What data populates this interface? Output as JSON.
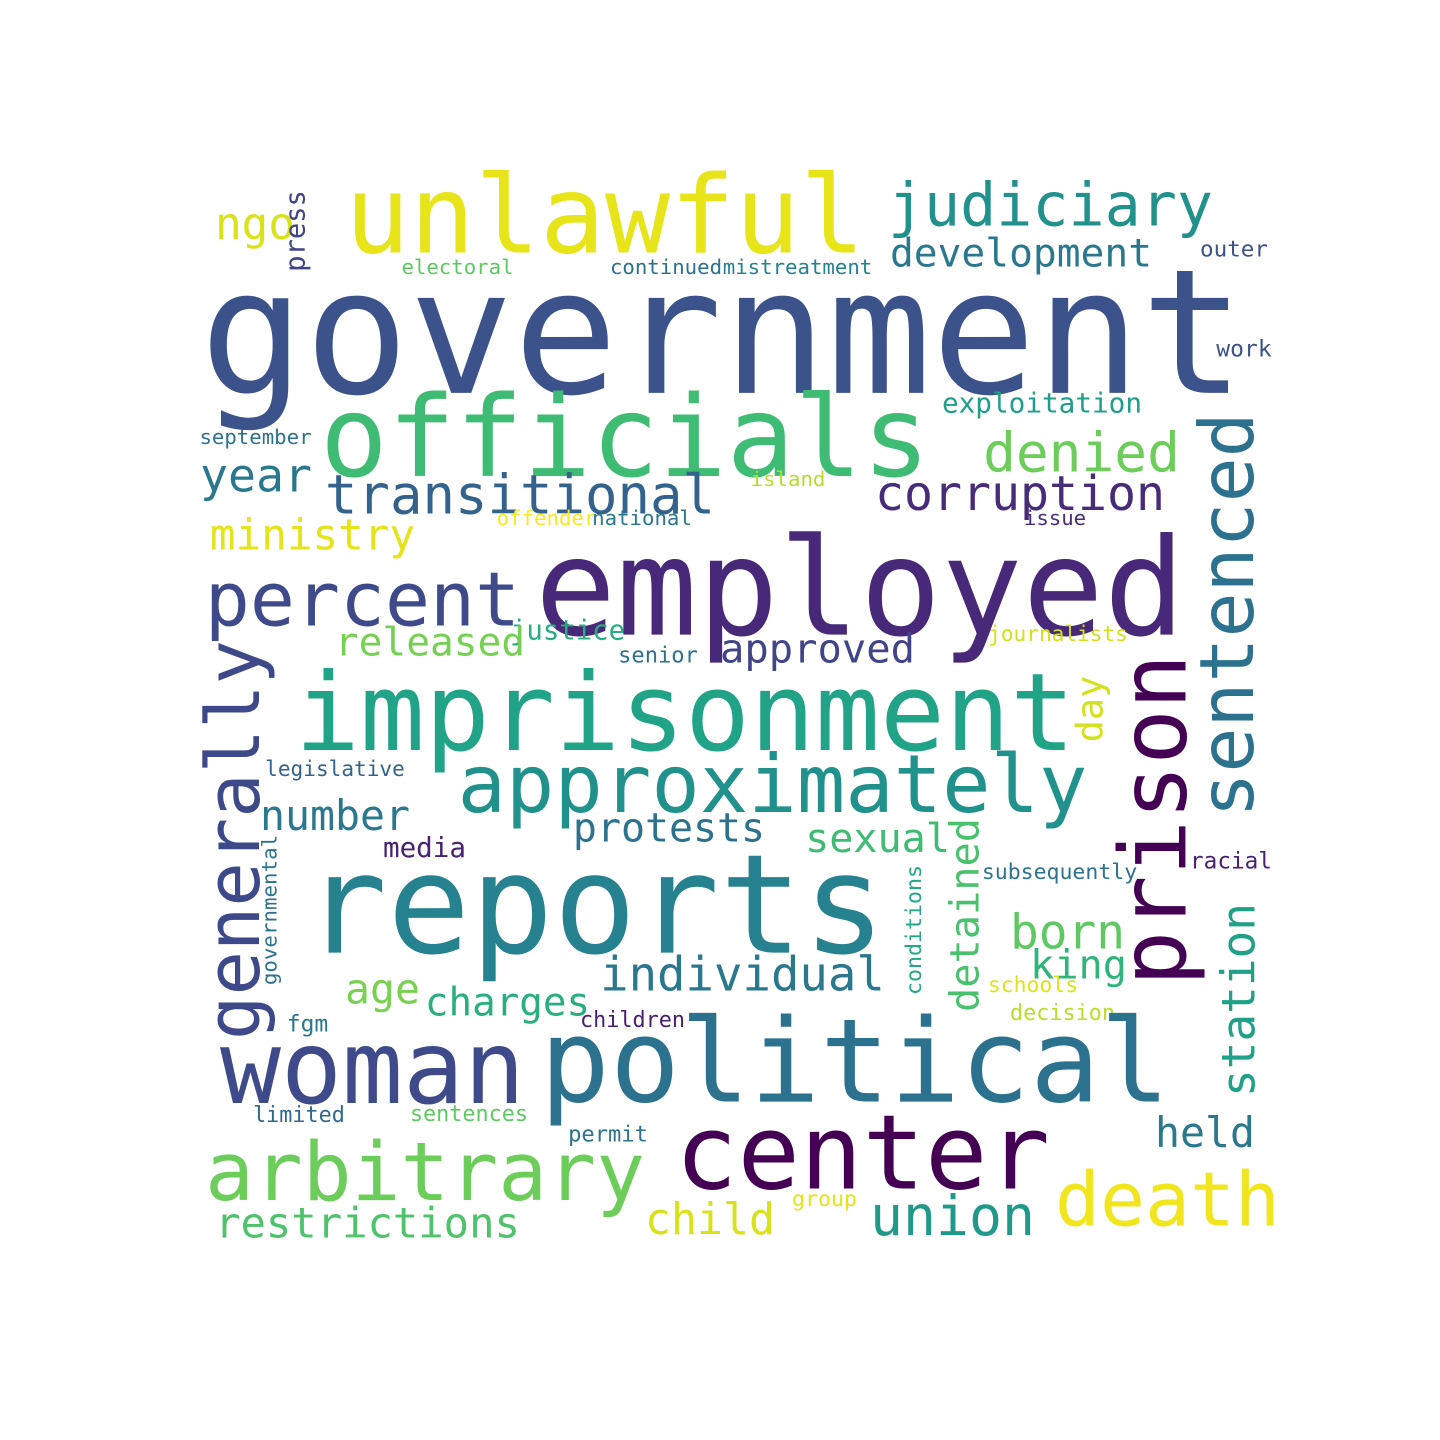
{
  "words": [
    {
      "text": "government",
      "color": "#3b528b",
      "rotated": false
    },
    {
      "text": "unlawful",
      "color": "#e7e419",
      "rotated": false
    },
    {
      "text": "judiciary",
      "color": "#21918c",
      "rotated": false
    },
    {
      "text": "development",
      "color": "#2a788e",
      "rotated": false
    },
    {
      "text": "ngo",
      "color": "#d8e219",
      "rotated": false
    },
    {
      "text": "press",
      "color": "#414487",
      "rotated": true
    },
    {
      "text": "electoral",
      "color": "#5ec962",
      "rotated": false
    },
    {
      "text": "continued",
      "color": "#2c728e",
      "rotated": false
    },
    {
      "text": "mistreatment",
      "color": "#26828e",
      "rotated": false
    },
    {
      "text": "outer",
      "color": "#3b528b",
      "rotated": false
    },
    {
      "text": "work",
      "color": "#3b528b",
      "rotated": false
    },
    {
      "text": "officials",
      "color": "#3fbc73",
      "rotated": false
    },
    {
      "text": "exploitation",
      "color": "#1f9e89",
      "rotated": false
    },
    {
      "text": "september",
      "color": "#2c728e",
      "rotated": false
    },
    {
      "text": "denied",
      "color": "#6ccd5a",
      "rotated": false
    },
    {
      "text": "year",
      "color": "#2a788e",
      "rotated": false
    },
    {
      "text": "transitional",
      "color": "#33638d",
      "rotated": false
    },
    {
      "text": "corruption",
      "color": "#472c7a",
      "rotated": false
    },
    {
      "text": "island",
      "color": "#b5de2b",
      "rotated": false
    },
    {
      "text": "offender",
      "color": "#fde725",
      "rotated": false
    },
    {
      "text": "national",
      "color": "#2a788e",
      "rotated": false
    },
    {
      "text": "issue",
      "color": "#472d7b",
      "rotated": false
    },
    {
      "text": "sentenced",
      "color": "#2c728e",
      "rotated": true
    },
    {
      "text": "ministry",
      "color": "#e5e419",
      "rotated": false
    },
    {
      "text": "employed",
      "color": "#482878",
      "rotated": false
    },
    {
      "text": "percent",
      "color": "#3e4a89",
      "rotated": false
    },
    {
      "text": "prison",
      "color": "#440154",
      "rotated": true
    },
    {
      "text": "justice",
      "color": "#27ad81",
      "rotated": false
    },
    {
      "text": "journalists",
      "color": "#d0e11c",
      "rotated": false
    },
    {
      "text": "released",
      "color": "#75d054",
      "rotated": false
    },
    {
      "text": "approved",
      "color": "#414487",
      "rotated": false
    },
    {
      "text": "senior",
      "color": "#2c728e",
      "rotated": false
    },
    {
      "text": "generally",
      "color": "#3e4989",
      "rotated": true
    },
    {
      "text": "imprisonment",
      "color": "#20a386",
      "rotated": false
    },
    {
      "text": "day",
      "color": "#d2e21b",
      "rotated": true
    },
    {
      "text": "legislative",
      "color": "#33638d",
      "rotated": false
    },
    {
      "text": "approximately",
      "color": "#21918c",
      "rotated": false
    },
    {
      "text": "number",
      "color": "#2a788e",
      "rotated": false
    },
    {
      "text": "protests",
      "color": "#2c728e",
      "rotated": false
    },
    {
      "text": "sexual",
      "color": "#3fbc73",
      "rotated": false
    },
    {
      "text": "detained",
      "color": "#4ac16d",
      "rotated": true
    },
    {
      "text": "media",
      "color": "#482173",
      "rotated": false
    },
    {
      "text": "governmental",
      "color": "#2c728e",
      "rotated": true
    },
    {
      "text": "reports",
      "color": "#26828e",
      "rotated": false
    },
    {
      "text": "conditions",
      "color": "#22a884",
      "rotated": true
    },
    {
      "text": "subsequently",
      "color": "#2c728e",
      "rotated": false
    },
    {
      "text": "racial",
      "color": "#482173",
      "rotated": false
    },
    {
      "text": "station",
      "color": "#1fa187",
      "rotated": true
    },
    {
      "text": "born",
      "color": "#5ec962",
      "rotated": false
    },
    {
      "text": "king",
      "color": "#2fb47c",
      "rotated": false
    },
    {
      "text": "individual",
      "color": "#2a788e",
      "rotated": false
    },
    {
      "text": "age",
      "color": "#7ad151",
      "rotated": false
    },
    {
      "text": "charges",
      "color": "#29af7f",
      "rotated": false
    },
    {
      "text": "schools",
      "color": "#dde318",
      "rotated": false
    },
    {
      "text": "fgm",
      "color": "#2a788e",
      "rotated": false
    },
    {
      "text": "children",
      "color": "#481f70",
      "rotated": false
    },
    {
      "text": "decision",
      "color": "#b8de29",
      "rotated": false
    },
    {
      "text": "woman",
      "color": "#3e4a89",
      "rotated": false
    },
    {
      "text": "political",
      "color": "#2c728e",
      "rotated": false
    },
    {
      "text": "limited",
      "color": "#31688e",
      "rotated": false
    },
    {
      "text": "sentences",
      "color": "#5ec962",
      "rotated": false
    },
    {
      "text": "permit",
      "color": "#2c728e",
      "rotated": false
    },
    {
      "text": "center",
      "color": "#440154",
      "rotated": false
    },
    {
      "text": "held",
      "color": "#2a788e",
      "rotated": false
    },
    {
      "text": "arbitrary",
      "color": "#6ccd5a",
      "rotated": false
    },
    {
      "text": "group",
      "color": "#e5e419",
      "rotated": false
    },
    {
      "text": "death",
      "color": "#f1e51d",
      "rotated": false
    },
    {
      "text": "restrictions",
      "color": "#4ec36b",
      "rotated": false
    },
    {
      "text": "child",
      "color": "#d8e219",
      "rotated": false
    },
    {
      "text": "union",
      "color": "#1f9a8a",
      "rotated": false
    }
  ]
}
